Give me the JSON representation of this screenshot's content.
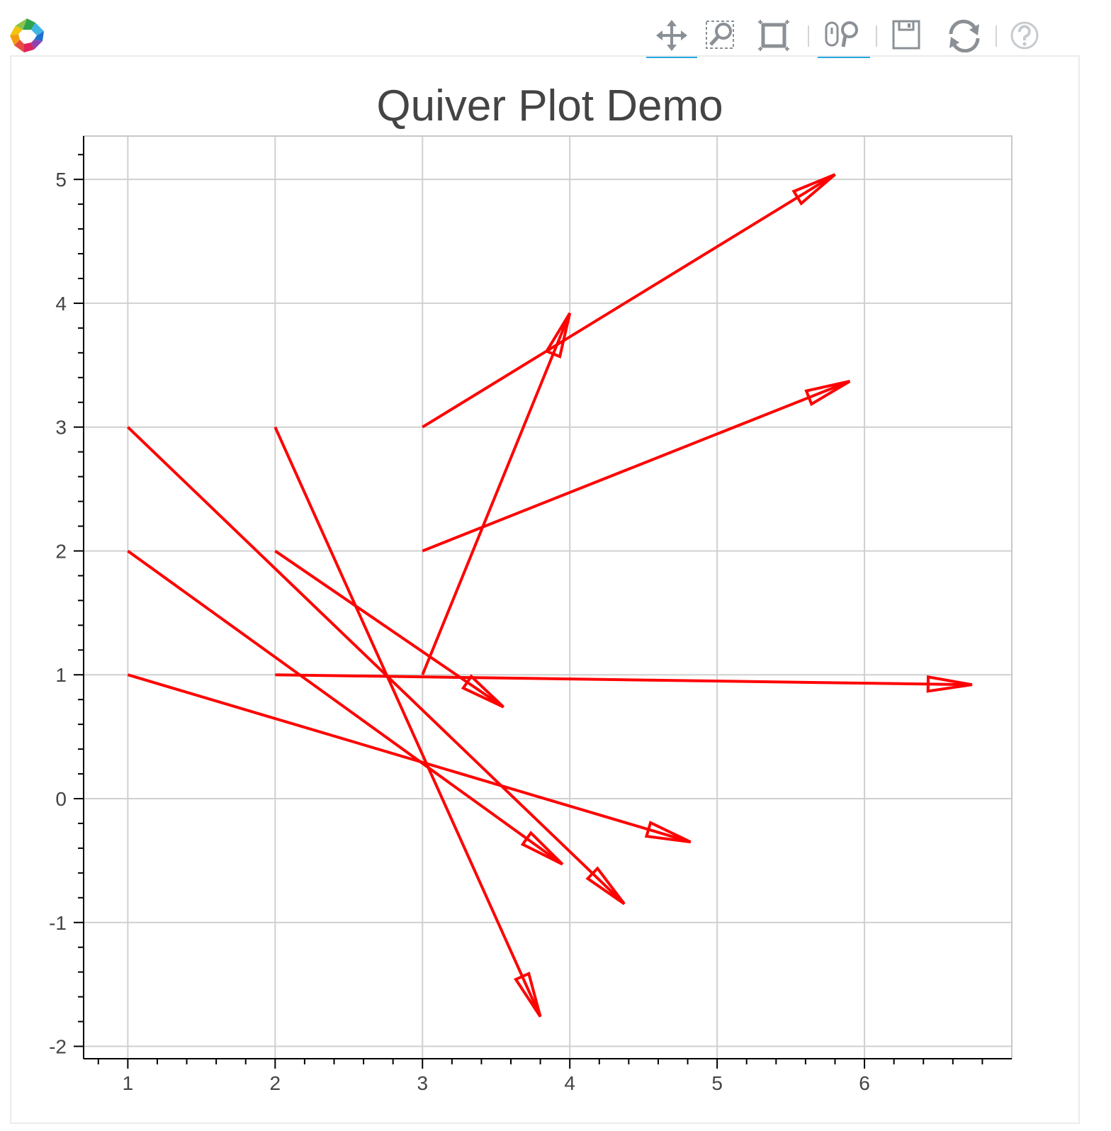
{
  "toolbar": {
    "tools": [
      {
        "name": "pan-tool",
        "icon": "pan-icon",
        "active": true
      },
      {
        "name": "box-zoom-tool",
        "icon": "box-zoom-icon",
        "active": false
      },
      {
        "name": "box-select-tool",
        "icon": "box-select-icon",
        "active": false
      },
      {
        "name": "wheel-zoom-tool",
        "icon": "wheel-zoom-icon",
        "active": true
      },
      {
        "name": "save-tool",
        "icon": "save-icon",
        "active": false
      },
      {
        "name": "reset-tool",
        "icon": "reset-icon",
        "active": false
      },
      {
        "name": "help-tool",
        "icon": "help-icon",
        "active": false
      }
    ],
    "accent_color": "#26aae1"
  },
  "chart_data": {
    "type": "quiver",
    "title": "Quiver Plot Demo",
    "xlabel": "",
    "ylabel": "",
    "xlim": [
      0.7,
      7.0
    ],
    "ylim": [
      -2.1,
      5.35
    ],
    "xticks": [
      1,
      2,
      3,
      4,
      5,
      6
    ],
    "yticks": [
      -2,
      -1,
      0,
      1,
      2,
      3,
      4,
      5
    ],
    "grid": true,
    "arrow_color": "#ff0000",
    "arrows": [
      {
        "x0": 1,
        "y0": 1,
        "x1": 4.82,
        "y1": -0.35
      },
      {
        "x0": 1,
        "y0": 2,
        "x1": 3.95,
        "y1": -0.53
      },
      {
        "x0": 1,
        "y0": 3,
        "x1": 4.37,
        "y1": -0.85
      },
      {
        "x0": 2,
        "y0": 1,
        "x1": 6.73,
        "y1": 0.92
      },
      {
        "x0": 2,
        "y0": 2,
        "x1": 3.55,
        "y1": 0.74
      },
      {
        "x0": 2,
        "y0": 3,
        "x1": 3.8,
        "y1": -1.76
      },
      {
        "x0": 3,
        "y0": 1,
        "x1": 4.0,
        "y1": 3.92
      },
      {
        "x0": 3,
        "y0": 2,
        "x1": 5.9,
        "y1": 3.37
      },
      {
        "x0": 3,
        "y0": 3,
        "x1": 5.8,
        "y1": 5.04
      }
    ]
  }
}
